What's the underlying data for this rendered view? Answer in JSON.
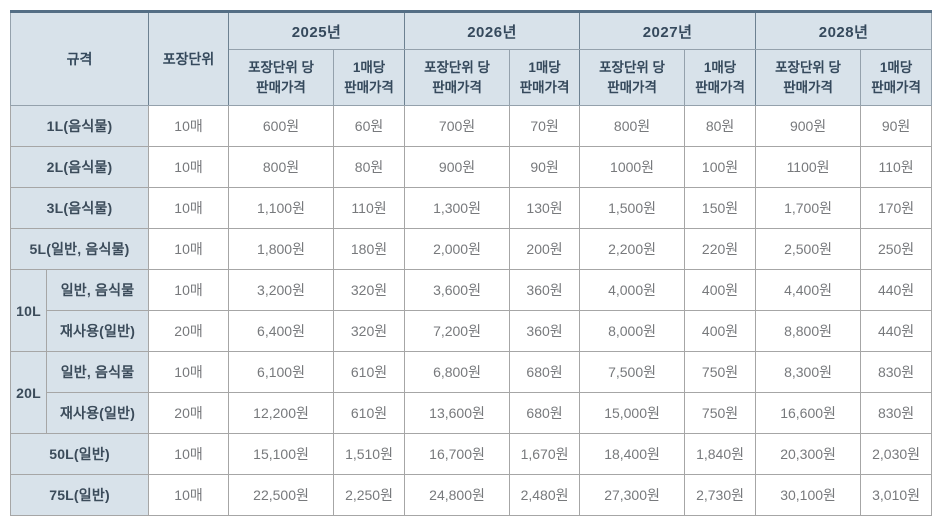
{
  "table": {
    "header": {
      "spec_label": "규격",
      "unit_label": "포장단위",
      "years": [
        "2025년",
        "2026년",
        "2027년",
        "2028년"
      ],
      "per_unit_label": "포장단위 당\n판매가격",
      "per_sheet_label": "1매당\n판매가격"
    },
    "colors": {
      "header_background": "#d8e2ea",
      "header_text": "#35495c",
      "body_text": "#77797c",
      "top_border": "#546e85",
      "grid_border": "#a6a6a6"
    },
    "rows": [
      {
        "label": "1L(음식물)",
        "label_colspan": 2,
        "unit": "10매",
        "prices": [
          "600원",
          "60원",
          "700원",
          "70원",
          "800원",
          "80원",
          "900원",
          "90원"
        ]
      },
      {
        "label": "2L(음식물)",
        "label_colspan": 2,
        "unit": "10매",
        "prices": [
          "800원",
          "80원",
          "900원",
          "90원",
          "1000원",
          "100원",
          "1100원",
          "110원"
        ]
      },
      {
        "label": "3L(음식물)",
        "label_colspan": 2,
        "unit": "10매",
        "prices": [
          "1,100원",
          "110원",
          "1,300원",
          "130원",
          "1,500원",
          "150원",
          "1,700원",
          "170원"
        ]
      },
      {
        "label": "5L(일반, 음식물)",
        "label_colspan": 2,
        "unit": "10매",
        "prices": [
          "1,800원",
          "180원",
          "2,000원",
          "200원",
          "2,200원",
          "220원",
          "2,500원",
          "250원"
        ]
      },
      {
        "group": "10L",
        "group_rowspan": 2,
        "label": "일반, 음식물",
        "unit": "10매",
        "prices": [
          "3,200원",
          "320원",
          "3,600원",
          "360원",
          "4,000원",
          "400원",
          "4,400원",
          "440원"
        ]
      },
      {
        "label": "재사용(일반)",
        "unit": "20매",
        "prices": [
          "6,400원",
          "320원",
          "7,200원",
          "360원",
          "8,000원",
          "400원",
          "8,800원",
          "440원"
        ]
      },
      {
        "group": "20L",
        "group_rowspan": 2,
        "label": "일반, 음식물",
        "unit": "10매",
        "prices": [
          "6,100원",
          "610원",
          "6,800원",
          "680원",
          "7,500원",
          "750원",
          "8,300원",
          "830원"
        ]
      },
      {
        "label": "재사용(일반)",
        "unit": "20매",
        "prices": [
          "12,200원",
          "610원",
          "13,600원",
          "680원",
          "15,000원",
          "750원",
          "16,600원",
          "830원"
        ]
      },
      {
        "label": "50L(일반)",
        "label_colspan": 2,
        "unit": "10매",
        "prices": [
          "15,100원",
          "1,510원",
          "16,700원",
          "1,670원",
          "18,400원",
          "1,840원",
          "20,300원",
          "2,030원"
        ]
      },
      {
        "label": "75L(일반)",
        "label_colspan": 2,
        "unit": "10매",
        "prices": [
          "22,500원",
          "2,250원",
          "24,800원",
          "2,480원",
          "27,300원",
          "2,730원",
          "30,100원",
          "3,010원"
        ]
      }
    ]
  }
}
